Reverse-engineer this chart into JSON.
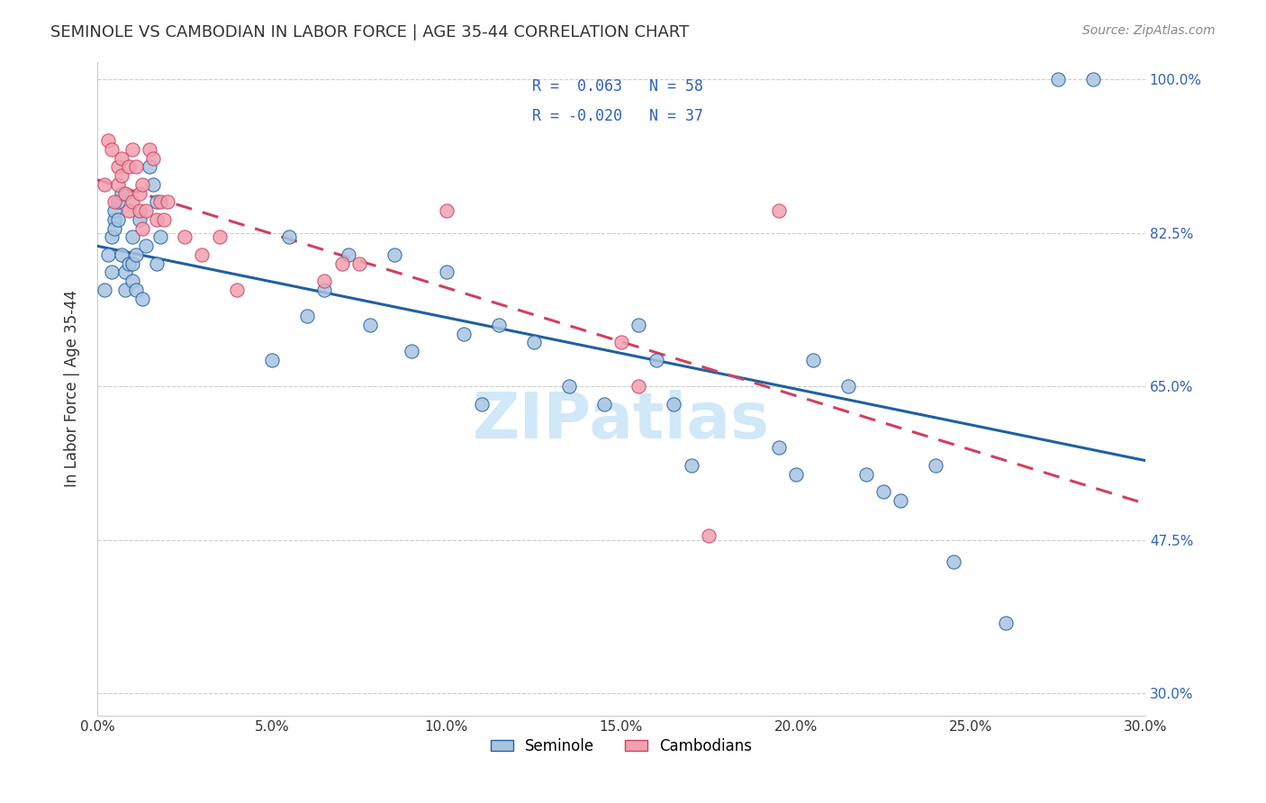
{
  "title": "SEMINOLE VS CAMBODIAN IN LABOR FORCE | AGE 35-44 CORRELATION CHART",
  "source_text": "Source: ZipAtlas.com",
  "xlabel": "",
  "ylabel": "In Labor Force | Age 35-44",
  "xlim": [
    0.0,
    0.3
  ],
  "ylim": [
    0.275,
    1.02
  ],
  "xtick_labels": [
    "0.0%",
    "5.0%",
    "10.0%",
    "15.0%",
    "20.0%",
    "25.0%",
    "30.0%"
  ],
  "xtick_vals": [
    0.0,
    0.05,
    0.1,
    0.15,
    0.2,
    0.25,
    0.3
  ],
  "ytick_labels_right": [
    "100.0%",
    "82.5%",
    "65.0%",
    "47.5%",
    "30.0%"
  ],
  "ytick_vals_right": [
    1.0,
    0.825,
    0.65,
    0.475,
    0.3
  ],
  "seminole_R": 0.063,
  "seminole_N": 58,
  "cambodian_R": -0.02,
  "cambodian_N": 37,
  "seminole_color": "#a8c4e0",
  "seminole_line_color": "#2060a0",
  "cambodian_color": "#f0a0b0",
  "cambodian_line_color": "#d04060",
  "watermark_text": "ZIPatlas",
  "watermark_color": "#d0e8f8",
  "legend_R_color": "#3060c0",
  "legend_N_color": "#3060c0",
  "seminole_x": [
    0.002,
    0.003,
    0.004,
    0.004,
    0.005,
    0.005,
    0.005,
    0.006,
    0.006,
    0.007,
    0.007,
    0.008,
    0.008,
    0.009,
    0.01,
    0.01,
    0.01,
    0.011,
    0.011,
    0.012,
    0.013,
    0.014,
    0.015,
    0.016,
    0.017,
    0.017,
    0.018,
    0.05,
    0.055,
    0.06,
    0.065,
    0.072,
    0.078,
    0.085,
    0.09,
    0.1,
    0.105,
    0.11,
    0.115,
    0.125,
    0.135,
    0.145,
    0.155,
    0.16,
    0.165,
    0.17,
    0.195,
    0.2,
    0.205,
    0.215,
    0.22,
    0.225,
    0.23,
    0.24,
    0.245,
    0.26,
    0.275,
    0.285
  ],
  "seminole_y": [
    0.76,
    0.8,
    0.82,
    0.78,
    0.84,
    0.85,
    0.83,
    0.86,
    0.84,
    0.87,
    0.8,
    0.78,
    0.76,
    0.79,
    0.82,
    0.79,
    0.77,
    0.8,
    0.76,
    0.84,
    0.75,
    0.81,
    0.9,
    0.88,
    0.86,
    0.79,
    0.82,
    0.68,
    0.82,
    0.73,
    0.76,
    0.8,
    0.72,
    0.8,
    0.69,
    0.78,
    0.71,
    0.63,
    0.72,
    0.7,
    0.65,
    0.63,
    0.72,
    0.68,
    0.63,
    0.56,
    0.58,
    0.55,
    0.68,
    0.65,
    0.55,
    0.53,
    0.52,
    0.56,
    0.45,
    0.38,
    1.0,
    1.0
  ],
  "cambodian_x": [
    0.002,
    0.003,
    0.004,
    0.005,
    0.006,
    0.006,
    0.007,
    0.007,
    0.008,
    0.009,
    0.009,
    0.01,
    0.01,
    0.011,
    0.012,
    0.012,
    0.013,
    0.013,
    0.014,
    0.015,
    0.016,
    0.017,
    0.018,
    0.019,
    0.02,
    0.025,
    0.03,
    0.035,
    0.04,
    0.065,
    0.07,
    0.075,
    0.1,
    0.15,
    0.155,
    0.175,
    0.195
  ],
  "cambodian_y": [
    0.88,
    0.93,
    0.92,
    0.86,
    0.9,
    0.88,
    0.91,
    0.89,
    0.87,
    0.9,
    0.85,
    0.92,
    0.86,
    0.9,
    0.85,
    0.87,
    0.83,
    0.88,
    0.85,
    0.92,
    0.91,
    0.84,
    0.86,
    0.84,
    0.86,
    0.82,
    0.8,
    0.82,
    0.76,
    0.77,
    0.79,
    0.79,
    0.85,
    0.7,
    0.65,
    0.48,
    0.85
  ]
}
